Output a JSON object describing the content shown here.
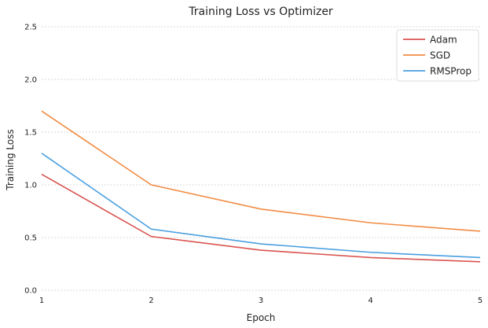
{
  "chart_data": {
    "type": "line",
    "title": "Training Loss vs Optimizer",
    "xlabel": "Epoch",
    "ylabel": "Training Loss",
    "x": [
      1,
      2,
      3,
      4,
      5
    ],
    "xticks": [
      "1",
      "2",
      "3",
      "4",
      "5"
    ],
    "yticks": [
      "0.0",
      "0.5",
      "1.0",
      "1.5",
      "2.0",
      "2.5"
    ],
    "xlim": [
      1,
      5
    ],
    "ylim": [
      0,
      2.5
    ],
    "grid": true,
    "legend_position": "top-right",
    "series": [
      {
        "name": "Adam",
        "color": "#d9534f",
        "values": [
          1.1,
          0.51,
          0.38,
          0.31,
          0.27
        ]
      },
      {
        "name": "SGD",
        "color": "#f28c45",
        "values": [
          1.7,
          1.0,
          0.77,
          0.64,
          0.56
        ]
      },
      {
        "name": "RMSProp",
        "color": "#4a9fe0",
        "values": [
          1.3,
          0.58,
          0.44,
          0.36,
          0.31
        ]
      }
    ]
  }
}
